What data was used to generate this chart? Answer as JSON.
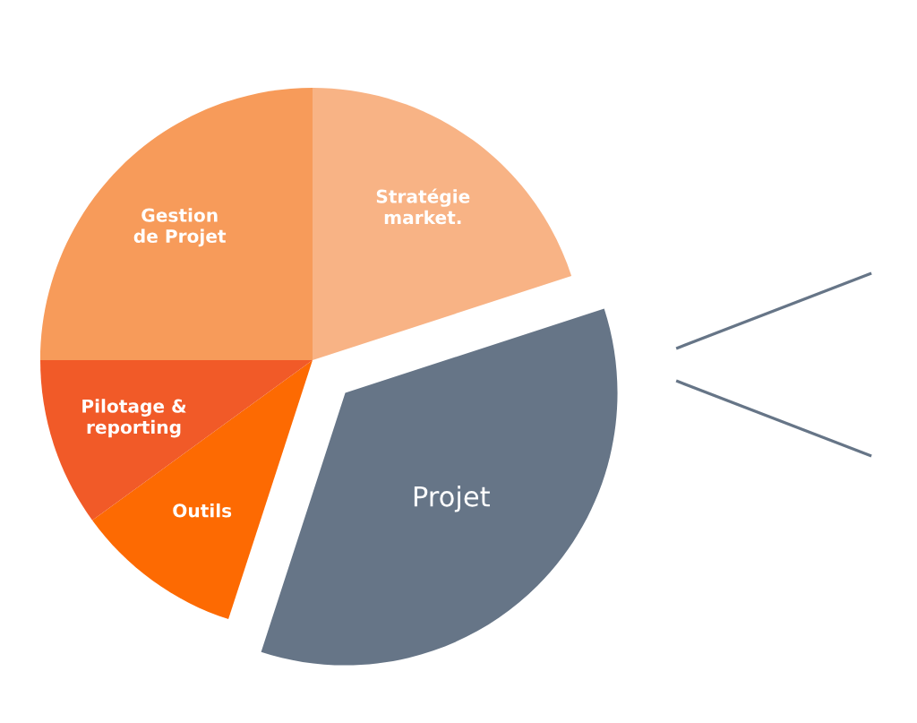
{
  "chart_data": {
    "type": "pie",
    "categories": [
      "Stratégie\nmarket.",
      "Projet",
      "Outils",
      "Pilotage &\nreporting",
      "Gestion\nde Projet"
    ],
    "values": [
      20,
      35,
      10,
      10,
      25
    ],
    "colors": [
      "#f8b385",
      "#667587",
      "#fd6a02",
      "#f15a28",
      "#f79b5a"
    ]
  }
}
